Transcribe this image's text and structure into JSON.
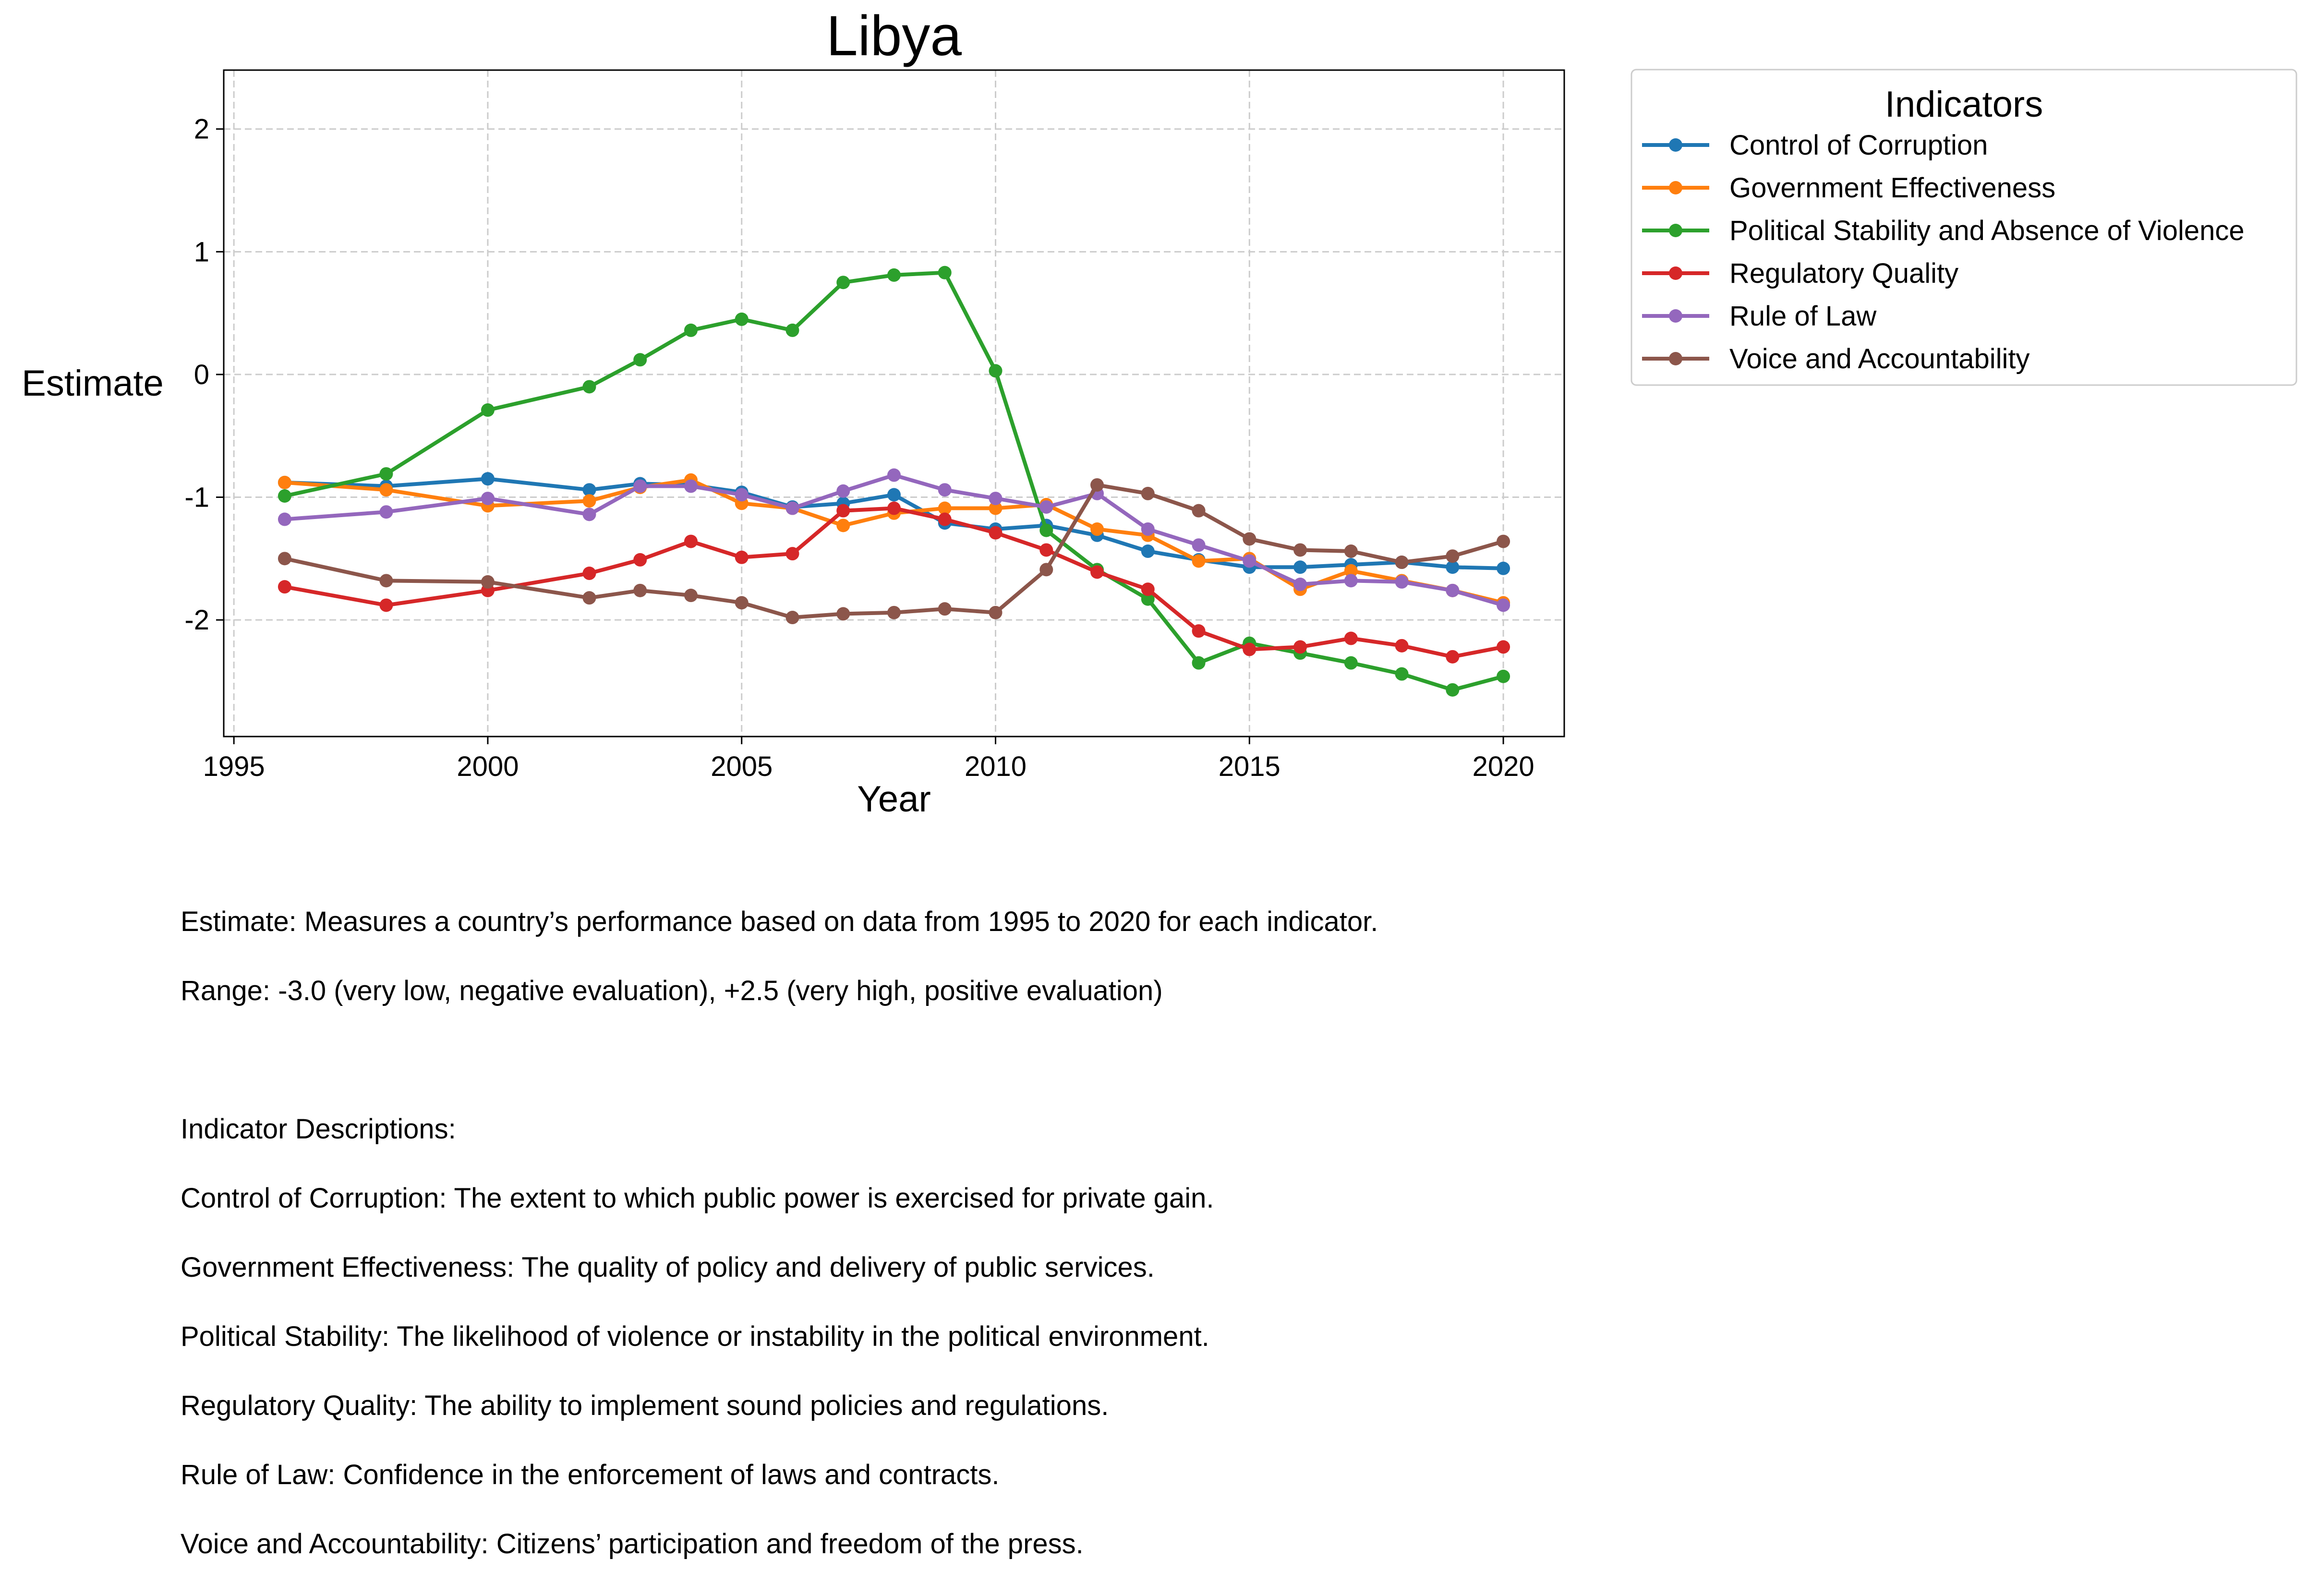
{
  "chart_data": {
    "type": "line",
    "title": "Libya",
    "xlabel": "Year",
    "ylabel": "Estimate",
    "xlim": [
      1994.8,
      2021.2
    ],
    "ylim": [
      -2.95,
      2.48
    ],
    "xticks": [
      1995,
      2000,
      2005,
      2010,
      2015,
      2020
    ],
    "yticks": [
      2,
      1,
      0,
      -1,
      -2
    ],
    "grid": true,
    "legend": {
      "title": "Indicators",
      "placement": "outside-top-right"
    },
    "x": [
      1996,
      1998,
      2000,
      2002,
      2003,
      2004,
      2005,
      2006,
      2007,
      2008,
      2009,
      2010,
      2011,
      2012,
      2013,
      2014,
      2015,
      2016,
      2017,
      2018,
      2019,
      2020
    ],
    "series": [
      {
        "name": "Control of Corruption",
        "color": "#1f77b4",
        "values": [
          -0.88,
          -0.91,
          -0.85,
          -0.94,
          -0.89,
          -0.9,
          -0.96,
          -1.08,
          -1.05,
          -0.98,
          -1.21,
          -1.26,
          -1.23,
          -1.31,
          -1.44,
          -1.51,
          -1.57,
          -1.57,
          -1.55,
          -1.53,
          -1.57,
          -1.58
        ]
      },
      {
        "name": "Government Effectiveness",
        "color": "#ff7f0e",
        "values": [
          -0.88,
          -0.94,
          -1.07,
          -1.03,
          -0.92,
          -0.86,
          -1.05,
          -1.09,
          -1.23,
          -1.13,
          -1.09,
          -1.09,
          -1.06,
          -1.26,
          -1.31,
          -1.52,
          -1.5,
          -1.75,
          -1.6,
          -1.68,
          -1.76,
          -1.86
        ]
      },
      {
        "name": "Political Stability and Absence of Violence",
        "color": "#2ca02c",
        "values": [
          -0.99,
          -0.81,
          -0.29,
          -0.1,
          0.12,
          0.36,
          0.45,
          0.36,
          0.75,
          0.81,
          0.83,
          0.03,
          -1.27,
          -1.59,
          -1.83,
          -2.35,
          -2.19,
          -2.27,
          -2.35,
          -2.44,
          -2.57,
          -2.46
        ]
      },
      {
        "name": "Regulatory Quality",
        "color": "#d62728",
        "values": [
          -1.73,
          -1.88,
          -1.76,
          -1.62,
          -1.51,
          -1.36,
          -1.49,
          -1.46,
          -1.11,
          -1.09,
          -1.18,
          -1.29,
          -1.43,
          -1.61,
          -1.75,
          -2.09,
          -2.24,
          -2.22,
          -2.15,
          -2.21,
          -2.3,
          -2.22
        ]
      },
      {
        "name": "Rule of Law",
        "color": "#9467bd",
        "values": [
          -1.18,
          -1.12,
          -1.01,
          -1.14,
          -0.91,
          -0.91,
          -0.98,
          -1.09,
          -0.95,
          -0.82,
          -0.94,
          -1.01,
          -1.08,
          -0.97,
          -1.26,
          -1.39,
          -1.52,
          -1.71,
          -1.68,
          -1.69,
          -1.76,
          -1.88
        ]
      },
      {
        "name": "Voice and Accountability",
        "color": "#8c564b",
        "values": [
          -1.5,
          -1.68,
          -1.69,
          -1.82,
          -1.76,
          -1.8,
          -1.86,
          -1.98,
          -1.95,
          -1.94,
          -1.91,
          -1.94,
          -1.59,
          -0.9,
          -0.97,
          -1.11,
          -1.34,
          -1.43,
          -1.44,
          -1.53,
          -1.48,
          -1.36
        ]
      }
    ]
  },
  "footnote": {
    "line1": "Estimate: Measures a country’s performance based on data from 1995 to 2020 for each indicator.",
    "line2": "Range: -3.0 (very low, negative evaluation), +2.5 (very high, positive evaluation)",
    "desc_heading": "Indicator Descriptions:",
    "desc": [
      "Control of Corruption: The extent to which public power is exercised for private gain.",
      "Government Effectiveness: The quality of policy and delivery of public services.",
      "Political Stability: The likelihood of violence or instability in the political environment.",
      "Regulatory Quality: The ability to implement sound policies and regulations.",
      "Rule of Law: Confidence in the enforcement of laws and contracts.",
      "Voice and Accountability: Citizens’ participation and freedom of the press."
    ]
  }
}
